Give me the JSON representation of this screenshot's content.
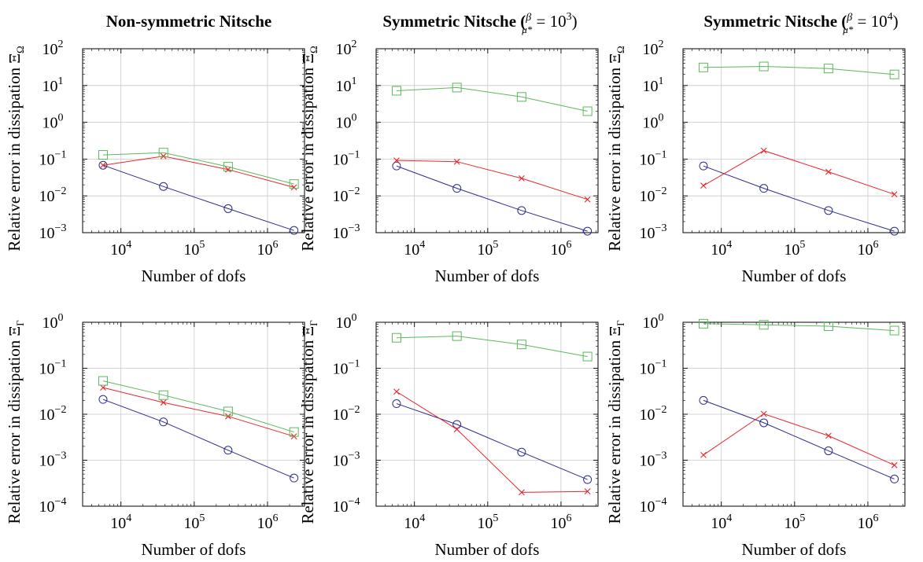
{
  "figure": {
    "titles": [
      {
        "text": "Non-symmetric Nitsche",
        "frac_num": "",
        "frac_den": "",
        "tail": "",
        "exp": ""
      },
      {
        "text": "Symmetric Nitsche (",
        "frac_num": "β",
        "frac_den": "μ*",
        "tail": " = 10",
        "exp": "3"
      },
      {
        "text": "Symmetric Nitsche (",
        "frac_num": "β",
        "frac_den": "μ*",
        "tail": " = 10",
        "exp": "4"
      }
    ],
    "title_suffixes": [
      "",
      ")",
      ")"
    ]
  },
  "series_colors": {
    "circle": "#2b2b8f",
    "cross": "#e8262b",
    "square": "#5cb85c"
  },
  "chart_data": [
    {
      "type": "line",
      "panel": "top-left",
      "xscale": "log",
      "yscale": "log",
      "xlabel": "Number of dofs",
      "ylabel": "Relative error in dissipation",
      "ylabel_sym": "Ξ",
      "ylabel_sub": "Ω",
      "xlim": [
        3000,
        3200000
      ],
      "ylim": [
        0.001,
        100
      ],
      "xticks": [
        10000,
        100000,
        1000000
      ],
      "xtick_labels": [
        "10",
        "10",
        "10"
      ],
      "xtick_exps": [
        "4",
        "5",
        "6"
      ],
      "yticks": [
        0.001,
        0.01,
        0.1,
        1,
        10,
        100
      ],
      "ytick_labels": [
        "10",
        "10",
        "10",
        "10",
        "10",
        "10"
      ],
      "ytick_exps": [
        "−3",
        "−2",
        "−1",
        "0",
        "1",
        "2"
      ],
      "x": [
        5700,
        38000,
        290000,
        2300000
      ],
      "series": [
        {
          "marker": "circle",
          "values": [
            0.068,
            0.018,
            0.0045,
            0.00115
          ]
        },
        {
          "marker": "cross",
          "values": [
            0.068,
            0.12,
            0.052,
            0.017
          ]
        },
        {
          "marker": "square",
          "values": [
            0.13,
            0.15,
            0.062,
            0.021
          ]
        }
      ]
    },
    {
      "type": "line",
      "panel": "top-middle",
      "xscale": "log",
      "yscale": "log",
      "xlabel": "Number of dofs",
      "ylabel": "Relative error in dissipation",
      "ylabel_sym": "Ξ",
      "ylabel_sub": "Ω",
      "xlim": [
        3000,
        3200000
      ],
      "ylim": [
        0.001,
        100
      ],
      "xticks": [
        10000,
        100000,
        1000000
      ],
      "xtick_labels": [
        "10",
        "10",
        "10"
      ],
      "xtick_exps": [
        "4",
        "5",
        "6"
      ],
      "yticks": [
        0.001,
        0.01,
        0.1,
        1,
        10,
        100
      ],
      "ytick_labels": [
        "10",
        "10",
        "10",
        "10",
        "10",
        "10"
      ],
      "ytick_exps": [
        "−3",
        "−2",
        "−1",
        "0",
        "1",
        "2"
      ],
      "x": [
        5700,
        38000,
        290000,
        2300000
      ],
      "series": [
        {
          "marker": "circle",
          "values": [
            0.065,
            0.016,
            0.004,
            0.0011
          ]
        },
        {
          "marker": "cross",
          "values": [
            0.092,
            0.085,
            0.03,
            0.008
          ]
        },
        {
          "marker": "square",
          "values": [
            7.2,
            8.8,
            4.9,
            2.0
          ]
        }
      ]
    },
    {
      "type": "line",
      "panel": "top-right",
      "xscale": "log",
      "yscale": "log",
      "xlabel": "Number of dofs",
      "ylabel": "Relative error in dissipation",
      "ylabel_sym": "Ξ",
      "ylabel_sub": "Ω",
      "xlim": [
        3000,
        3200000
      ],
      "ylim": [
        0.001,
        100
      ],
      "xticks": [
        10000,
        100000,
        1000000
      ],
      "xtick_labels": [
        "10",
        "10",
        "10"
      ],
      "xtick_exps": [
        "4",
        "5",
        "6"
      ],
      "yticks": [
        0.001,
        0.01,
        0.1,
        1,
        10,
        100
      ],
      "ytick_labels": [
        "10",
        "10",
        "10",
        "10",
        "10",
        "10"
      ],
      "ytick_exps": [
        "−3",
        "−2",
        "−1",
        "0",
        "1",
        "2"
      ],
      "x": [
        5700,
        38000,
        290000,
        2300000
      ],
      "series": [
        {
          "marker": "circle",
          "values": [
            0.065,
            0.016,
            0.004,
            0.0011
          ]
        },
        {
          "marker": "cross",
          "values": [
            0.019,
            0.17,
            0.045,
            0.011
          ]
        },
        {
          "marker": "square",
          "values": [
            31,
            33,
            29,
            20
          ]
        }
      ]
    },
    {
      "type": "line",
      "panel": "bottom-left",
      "xscale": "log",
      "yscale": "log",
      "xlabel": "Number of dofs",
      "ylabel": "Relative error in dissipation",
      "ylabel_sym": "Ξ",
      "ylabel_sub": "Γ",
      "xlim": [
        3000,
        3200000
      ],
      "ylim": [
        0.0001,
        1
      ],
      "xticks": [
        10000,
        100000,
        1000000
      ],
      "xtick_labels": [
        "10",
        "10",
        "10"
      ],
      "xtick_exps": [
        "4",
        "5",
        "6"
      ],
      "yticks": [
        0.0001,
        0.001,
        0.01,
        0.1,
        1
      ],
      "ytick_labels": [
        "10",
        "10",
        "10",
        "10",
        "10"
      ],
      "ytick_exps": [
        "−4",
        "−3",
        "−2",
        "−1",
        "0"
      ],
      "x": [
        5700,
        38000,
        290000,
        2300000
      ],
      "series": [
        {
          "marker": "circle",
          "values": [
            0.021,
            0.0068,
            0.00165,
            0.00041
          ]
        },
        {
          "marker": "cross",
          "values": [
            0.038,
            0.018,
            0.009,
            0.0033
          ]
        },
        {
          "marker": "square",
          "values": [
            0.053,
            0.026,
            0.0115,
            0.0041
          ]
        }
      ]
    },
    {
      "type": "line",
      "panel": "bottom-middle",
      "xscale": "log",
      "yscale": "log",
      "xlabel": "Number of dofs",
      "ylabel": "Relative error in dissipation",
      "ylabel_sym": "Ξ",
      "ylabel_sub": "Γ",
      "xlim": [
        3000,
        3200000
      ],
      "ylim": [
        0.0001,
        1
      ],
      "xticks": [
        10000,
        100000,
        1000000
      ],
      "xtick_labels": [
        "10",
        "10",
        "10"
      ],
      "xtick_exps": [
        "4",
        "5",
        "6"
      ],
      "yticks": [
        0.0001,
        0.001,
        0.01,
        0.1,
        1
      ],
      "ytick_labels": [
        "10",
        "10",
        "10",
        "10",
        "10"
      ],
      "ytick_exps": [
        "−4",
        "−3",
        "−2",
        "−1",
        "0"
      ],
      "x": [
        5700,
        38000,
        290000,
        2300000
      ],
      "series": [
        {
          "marker": "circle",
          "values": [
            0.017,
            0.006,
            0.0015,
            0.00038
          ]
        },
        {
          "marker": "cross",
          "values": [
            0.031,
            0.0047,
            0.0002,
            0.00021
          ]
        },
        {
          "marker": "square",
          "values": [
            0.46,
            0.5,
            0.33,
            0.18
          ]
        }
      ]
    },
    {
      "type": "line",
      "panel": "bottom-right",
      "xscale": "log",
      "yscale": "log",
      "xlabel": "Number of dofs",
      "ylabel": "Relative error in dissipation",
      "ylabel_sym": "Ξ",
      "ylabel_sub": "Γ",
      "xlim": [
        3000,
        3200000
      ],
      "ylim": [
        0.0001,
        1
      ],
      "xticks": [
        10000,
        100000,
        1000000
      ],
      "xtick_labels": [
        "10",
        "10",
        "10"
      ],
      "xtick_exps": [
        "4",
        "5",
        "6"
      ],
      "yticks": [
        0.0001,
        0.001,
        0.01,
        0.1,
        1
      ],
      "ytick_labels": [
        "10",
        "10",
        "10",
        "10",
        "10"
      ],
      "ytick_exps": [
        "−4",
        "−3",
        "−2",
        "−1",
        "0"
      ],
      "x": [
        5700,
        38000,
        290000,
        2300000
      ],
      "series": [
        {
          "marker": "circle",
          "values": [
            0.02,
            0.0065,
            0.0016,
            0.00039
          ]
        },
        {
          "marker": "cross",
          "values": [
            0.0013,
            0.0102,
            0.0034,
            0.00078
          ]
        },
        {
          "marker": "square",
          "values": [
            0.93,
            0.88,
            0.82,
            0.66
          ]
        }
      ]
    }
  ]
}
